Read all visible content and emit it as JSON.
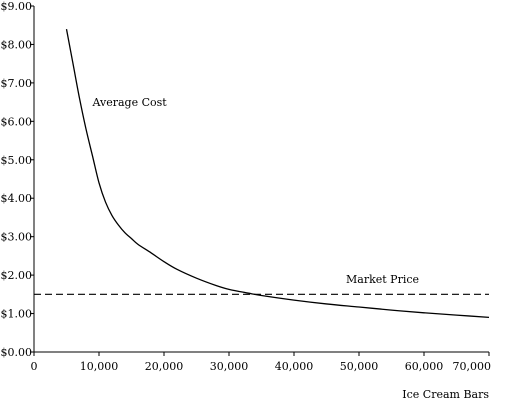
{
  "chart_data": {
    "type": "line",
    "title": "",
    "xlabel": "Ice Cream Bars",
    "ylabel": "",
    "xlim": [
      0,
      70000
    ],
    "ylim": [
      0,
      9
    ],
    "x_ticks": [
      0,
      10000,
      20000,
      30000,
      40000,
      50000,
      60000,
      70000
    ],
    "x_tick_labels": [
      "0",
      "10,000",
      "20,000",
      "30,000",
      "40,000",
      "50,000",
      "60,000",
      "70,000"
    ],
    "y_ticks": [
      0,
      1,
      2,
      3,
      4,
      5,
      6,
      7,
      8,
      9
    ],
    "y_tick_labels": [
      "$0.00",
      "$1.00",
      "$2.00",
      "$3.00",
      "$4.00",
      "$5.00",
      "$6.00",
      "$7.00",
      "$8.00",
      "$9.00"
    ],
    "grid": false,
    "legend": "none",
    "series": [
      {
        "name": "Average Cost",
        "style": "solid",
        "x": [
          5000,
          6000,
          7000,
          8000,
          9000,
          10000,
          11000,
          12000,
          13000,
          14000,
          15000,
          16000,
          18000,
          20000,
          22000,
          25000,
          28000,
          30000,
          33000,
          35000,
          40000,
          45000,
          50000,
          55000,
          60000,
          65000,
          70000
        ],
        "y": [
          8.4,
          7.5,
          6.6,
          5.8,
          5.1,
          4.4,
          3.9,
          3.55,
          3.3,
          3.1,
          2.95,
          2.8,
          2.58,
          2.35,
          2.15,
          1.92,
          1.73,
          1.63,
          1.53,
          1.47,
          1.35,
          1.25,
          1.17,
          1.09,
          1.02,
          0.96,
          0.9
        ]
      },
      {
        "name": "Market Price",
        "style": "dashed",
        "x": [
          0,
          70000
        ],
        "y": [
          1.5,
          1.5
        ]
      }
    ],
    "annotations": [
      {
        "text": "Average Cost",
        "x": 9000,
        "y": 6.4
      },
      {
        "text": "Market Price",
        "x": 48000,
        "y": 1.8
      }
    ]
  }
}
